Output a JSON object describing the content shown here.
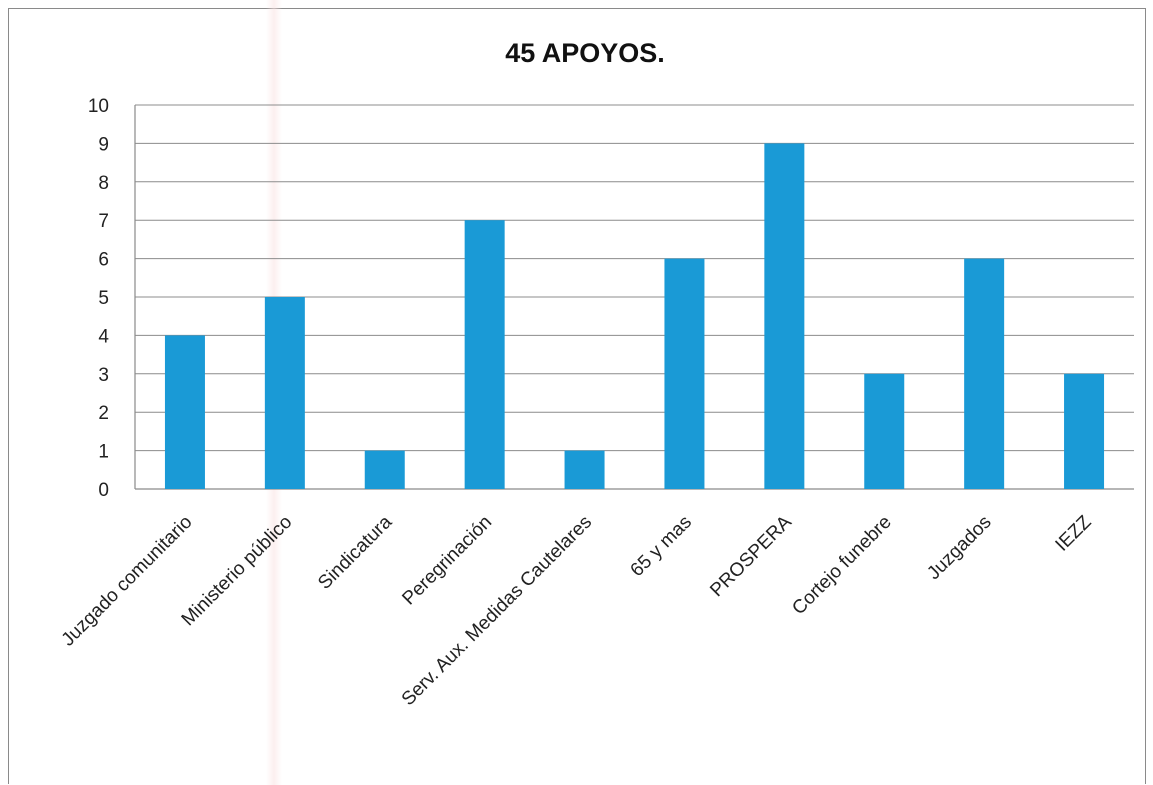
{
  "chart_data": {
    "type": "bar",
    "title": "45 APOYOS.",
    "categories": [
      "Juzgado comunitario",
      "Ministerio público",
      "Sindicatura",
      "Peregrinación",
      "Serv. Aux. Medidas Cautelares",
      "65 y mas",
      "PROSPERA",
      "Cortejo funebre",
      "Juzgados",
      "IEZZ"
    ],
    "values": [
      4,
      5,
      1,
      7,
      1,
      6,
      9,
      3,
      6,
      3
    ],
    "xlabel": "",
    "ylabel": "",
    "ylim": [
      0,
      10
    ],
    "yticks": [
      "0",
      "1",
      "2",
      "3",
      "4",
      "5",
      "6",
      "7",
      "8",
      "9",
      "10"
    ],
    "grid": true,
    "legend": "none",
    "bar_color": "#1a9ad6",
    "grid_color": "#8c8c8c"
  }
}
